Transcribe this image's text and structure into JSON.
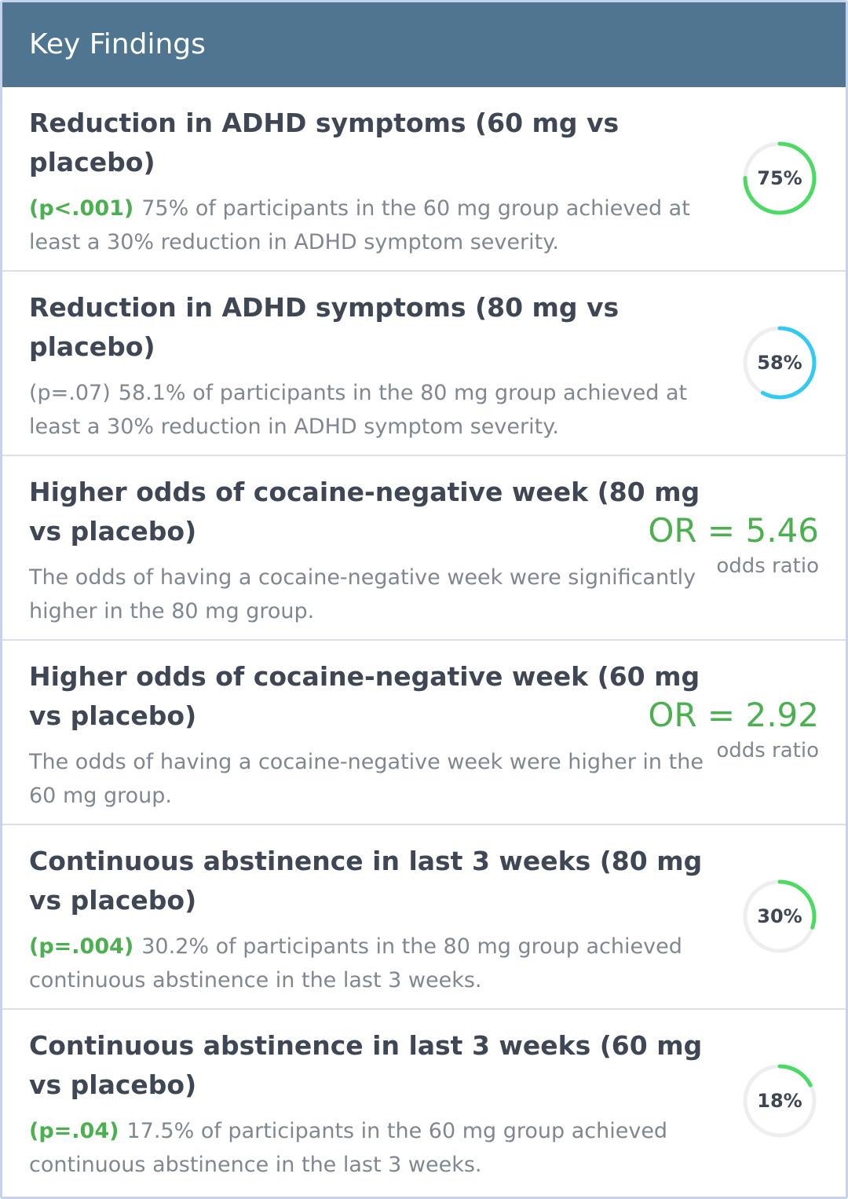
{
  "header": {
    "title": "Key Findings"
  },
  "colors": {
    "header_bg": "#4f7590",
    "significant": "#4caf50",
    "muted": "#7f8790",
    "ring_green": "#4cd964",
    "ring_cyan": "#33c9f0",
    "ring_track": "#eeeeee"
  },
  "findings": [
    {
      "title": "Reduction in ADHD symptoms (60 mg vs placebo)",
      "p_value": "(p<.001)",
      "significant": true,
      "description": "75% of participants in the 60 mg group achieved at least a 30% reduction in ADHD symptom severity.",
      "metric_type": "ring",
      "percent": 75,
      "ring_label": "75%",
      "ring_color": "#4cd964"
    },
    {
      "title": "Reduction in ADHD symptoms (80 mg vs placebo)",
      "p_value": "(p=.07)",
      "significant": false,
      "description": "58.1% of participants in the 80 mg group achieved at least a 30% reduction in ADHD symptom severity.",
      "metric_type": "ring",
      "percent": 58.1,
      "ring_label": "58%",
      "ring_color": "#33c9f0"
    },
    {
      "title": "Higher odds of cocaine-negative week (80 mg vs placebo)",
      "p_value": "",
      "significant": true,
      "description": "The odds of having a cocaine-negative week were significantly higher in the 80 mg group.",
      "metric_type": "odds",
      "or_value": "OR = 5.46",
      "or_caption": "odds ratio"
    },
    {
      "title": "Higher odds of cocaine-negative week (60 mg vs placebo)",
      "p_value": "",
      "significant": true,
      "description": "The odds of having a cocaine-negative week were higher in the 60 mg group.",
      "metric_type": "odds",
      "or_value": "OR = 2.92",
      "or_caption": "odds ratio"
    },
    {
      "title": "Continuous abstinence in last 3 weeks (80 mg vs placebo)",
      "p_value": "(p=.004)",
      "significant": true,
      "description": "30.2% of participants in the 80 mg group achieved continuous abstinence in the last 3 weeks.",
      "metric_type": "ring",
      "percent": 30.2,
      "ring_label": "30%",
      "ring_color": "#4cd964"
    },
    {
      "title": "Continuous abstinence in last 3 weeks (60 mg vs placebo)",
      "p_value": "(p=.04)",
      "significant": true,
      "description": "17.5% of participants in the 60 mg group achieved continuous abstinence in the last 3 weeks.",
      "metric_type": "ring",
      "percent": 17.5,
      "ring_label": "18%",
      "ring_color": "#4cd964"
    }
  ]
}
